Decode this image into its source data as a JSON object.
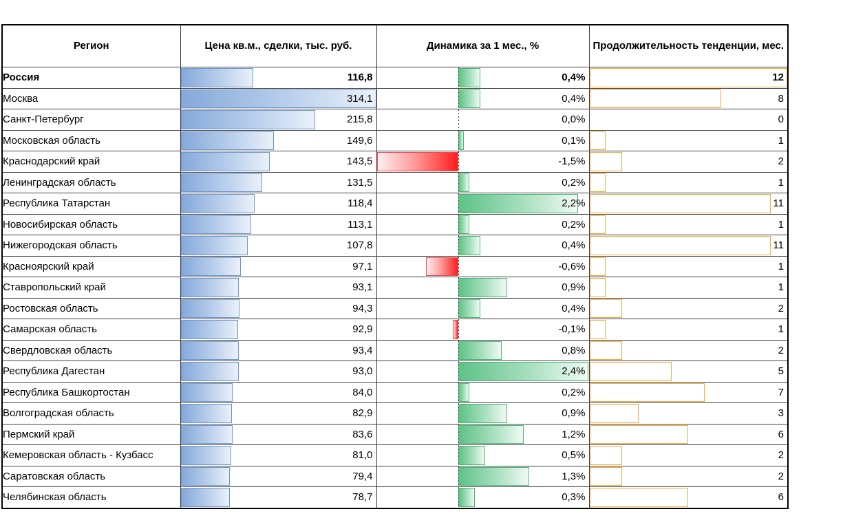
{
  "table": {
    "columns": [
      {
        "label": "Регион"
      },
      {
        "label": "Цена кв.м., сделки, тыс. руб."
      },
      {
        "label": "Динамика за 1 мес., %"
      },
      {
        "label": "Продолжительность тенденции, мес."
      }
    ],
    "scales": {
      "price": {
        "min": 0,
        "max": 314.1
      },
      "dynamics": {
        "min": -1.5,
        "max": 2.4
      },
      "months": {
        "min": 0,
        "max": 12
      }
    },
    "rows": [
      {
        "region": "Россия",
        "price": "116,8",
        "price_value": 116.8,
        "dynamics": "0,4%",
        "dynamics_value": 0.4,
        "months": "12",
        "months_value": 12,
        "bold": true
      },
      {
        "region": "Москва",
        "price": "314,1",
        "price_value": 314.1,
        "dynamics": "0,4%",
        "dynamics_value": 0.4,
        "months": "8",
        "months_value": 8,
        "bold": false
      },
      {
        "region": "Санкт-Петербург",
        "price": "215,8",
        "price_value": 215.8,
        "dynamics": "0,0%",
        "dynamics_value": 0.0,
        "months": "0",
        "months_value": 0,
        "bold": false
      },
      {
        "region": "Московская область",
        "price": "149,6",
        "price_value": 149.6,
        "dynamics": "0,1%",
        "dynamics_value": 0.1,
        "months": "1",
        "months_value": 1,
        "bold": false
      },
      {
        "region": "Краснодарский край",
        "price": "143,5",
        "price_value": 143.5,
        "dynamics": "-1,5%",
        "dynamics_value": -1.5,
        "months": "2",
        "months_value": 2,
        "bold": false
      },
      {
        "region": "Ленинградская область",
        "price": "131,5",
        "price_value": 131.5,
        "dynamics": "0,2%",
        "dynamics_value": 0.2,
        "months": "1",
        "months_value": 1,
        "bold": false
      },
      {
        "region": "Республика Татарстан",
        "price": "118,4",
        "price_value": 118.4,
        "dynamics": "2,2%",
        "dynamics_value": 2.2,
        "months": "11",
        "months_value": 11,
        "bold": false
      },
      {
        "region": "Новосибирская область",
        "price": "113,1",
        "price_value": 113.1,
        "dynamics": "0,2%",
        "dynamics_value": 0.2,
        "months": "1",
        "months_value": 1,
        "bold": false
      },
      {
        "region": "Нижегородская область",
        "price": "107,8",
        "price_value": 107.8,
        "dynamics": "0,4%",
        "dynamics_value": 0.4,
        "months": "11",
        "months_value": 11,
        "bold": false
      },
      {
        "region": "Красноярский край",
        "price": "97,1",
        "price_value": 97.1,
        "dynamics": "-0,6%",
        "dynamics_value": -0.6,
        "months": "1",
        "months_value": 1,
        "bold": false
      },
      {
        "region": "Ставропольский край",
        "price": "93,1",
        "price_value": 93.1,
        "dynamics": "0,9%",
        "dynamics_value": 0.9,
        "months": "1",
        "months_value": 1,
        "bold": false
      },
      {
        "region": "Ростовская область",
        "price": "94,3",
        "price_value": 94.3,
        "dynamics": "0,4%",
        "dynamics_value": 0.4,
        "months": "2",
        "months_value": 2,
        "bold": false
      },
      {
        "region": "Самарская область",
        "price": "92,9",
        "price_value": 92.9,
        "dynamics": "-0,1%",
        "dynamics_value": -0.1,
        "months": "1",
        "months_value": 1,
        "bold": false
      },
      {
        "region": "Свердловская область",
        "price": "93,4",
        "price_value": 93.4,
        "dynamics": "0,8%",
        "dynamics_value": 0.8,
        "months": "2",
        "months_value": 2,
        "bold": false
      },
      {
        "region": "Республика Дагестан",
        "price": "93,0",
        "price_value": 93.0,
        "dynamics": "2,4%",
        "dynamics_value": 2.4,
        "months": "5",
        "months_value": 5,
        "bold": false
      },
      {
        "region": "Республика Башкортостан",
        "price": "84,0",
        "price_value": 84.0,
        "dynamics": "0,2%",
        "dynamics_value": 0.2,
        "months": "7",
        "months_value": 7,
        "bold": false
      },
      {
        "region": "Волгоградская область",
        "price": "82,9",
        "price_value": 82.9,
        "dynamics": "0,9%",
        "dynamics_value": 0.9,
        "months": "3",
        "months_value": 3,
        "bold": false
      },
      {
        "region": "Пермский край",
        "price": "83,6",
        "price_value": 83.6,
        "dynamics": "1,2%",
        "dynamics_value": 1.2,
        "months": "6",
        "months_value": 6,
        "bold": false
      },
      {
        "region": "Кемеровская область - Кузбасс",
        "price": "81,0",
        "price_value": 81.0,
        "dynamics": "0,5%",
        "dynamics_value": 0.5,
        "months": "2",
        "months_value": 2,
        "bold": false
      },
      {
        "region": "Саратовская область",
        "price": "79,4",
        "price_value": 79.4,
        "dynamics": "1,3%",
        "dynamics_value": 1.3,
        "months": "2",
        "months_value": 2,
        "bold": false
      },
      {
        "region": "Челябинская область",
        "price": "78,7",
        "price_value": 78.7,
        "dynamics": "0,3%",
        "dynamics_value": 0.3,
        "months": "6",
        "months_value": 6,
        "bold": false
      }
    ]
  },
  "colors": {
    "price_bar": "#85a9da",
    "price_bar_border": "#6e96ce",
    "dynamics_positive": "#5ec287",
    "dynamics_positive_border": "#4fb377",
    "dynamics_negative": "#ff1d1d",
    "dynamics_negative_border": "#f04848",
    "months_bar": "#fcb53b",
    "months_bar_border": "#f3a93a",
    "grid_line": "#3f3f3f",
    "outer_border": "#000000"
  },
  "chart_data": {
    "type": "table",
    "title": "",
    "columns": [
      "Регион",
      "Цена кв.м., сделки, тыс. руб.",
      "Динамика за 1 мес., %",
      "Продолжительность тенденции, мес."
    ],
    "rows": [
      [
        "Россия",
        116.8,
        0.4,
        12
      ],
      [
        "Москва",
        314.1,
        0.4,
        8
      ],
      [
        "Санкт-Петербург",
        215.8,
        0.0,
        0
      ],
      [
        "Московская область",
        149.6,
        0.1,
        1
      ],
      [
        "Краснодарский край",
        143.5,
        -1.5,
        2
      ],
      [
        "Ленинградская область",
        131.5,
        0.2,
        1
      ],
      [
        "Республика Татарстан",
        118.4,
        2.2,
        11
      ],
      [
        "Новосибирская область",
        113.1,
        0.2,
        1
      ],
      [
        "Нижегородская область",
        107.8,
        0.4,
        11
      ],
      [
        "Красноярский край",
        97.1,
        -0.6,
        1
      ],
      [
        "Ставропольский край",
        93.1,
        0.9,
        1
      ],
      [
        "Ростовская область",
        94.3,
        0.4,
        2
      ],
      [
        "Самарская область",
        92.9,
        -0.1,
        1
      ],
      [
        "Свердловская область",
        93.4,
        0.8,
        2
      ],
      [
        "Республика Дагестан",
        93.0,
        2.4,
        5
      ],
      [
        "Республика Башкортостан",
        84.0,
        0.2,
        7
      ],
      [
        "Волгоградская область",
        82.9,
        0.9,
        3
      ],
      [
        "Пермский край",
        83.6,
        1.2,
        6
      ],
      [
        "Кемеровская область - Кузбасс",
        81.0,
        0.5,
        2
      ],
      [
        "Саратовская область",
        79.4,
        1.3,
        2
      ],
      [
        "Челябинская область",
        78.7,
        0.3,
        6
      ]
    ],
    "bar_columns": {
      "price": {
        "style": "data-bar-blue-gradient",
        "min": 0,
        "max": 314.1
      },
      "dynamics": {
        "style": "data-bar-green-red-gradient-with-axis",
        "min": -1.5,
        "max": 2.4
      },
      "months": {
        "style": "data-bar-orange-gradient",
        "min": 0,
        "max": 12
      }
    },
    "legend_position": "none",
    "grid": true
  }
}
